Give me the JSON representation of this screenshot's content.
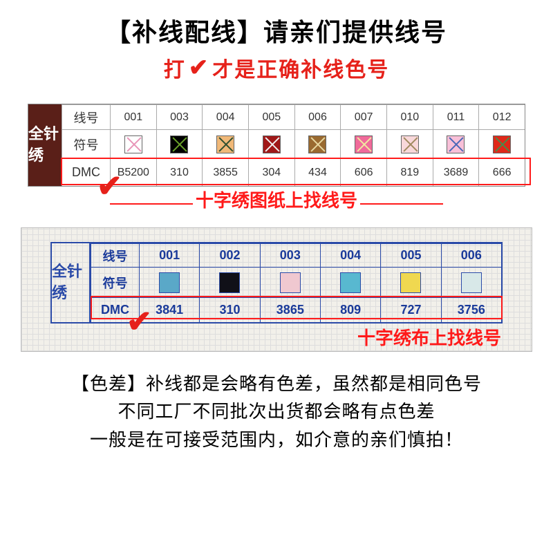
{
  "header": {
    "title": "【补线配线】请亲们提供线号",
    "subtitle_pre": "打",
    "subtitle_post": "才是正确补线色号"
  },
  "table1": {
    "side_label": "全针绣",
    "row_labels": [
      "线号",
      "符号",
      "DMC"
    ],
    "thread_numbers": [
      "001",
      "003",
      "004",
      "005",
      "006",
      "007",
      "010",
      "011",
      "012"
    ],
    "symbol_colors": [
      {
        "bg": "#ffffff",
        "x": "#e895b8"
      },
      {
        "bg": "#000000",
        "x": "#6aa22a"
      },
      {
        "bg": "#f0b878",
        "x": "#2f4f2f"
      },
      {
        "bg": "#a01818",
        "x": "#f0f0f0"
      },
      {
        "bg": "#9a6a30",
        "x": "#e8d8a0"
      },
      {
        "bg": "#f06a9a",
        "x": "#f0e8a0"
      },
      {
        "bg": "#f8d8da",
        "x": "#a08a60"
      },
      {
        "bg": "#f8c0d8",
        "x": "#4a68b8"
      },
      {
        "bg": "#e02818",
        "x": "#4a8a4a"
      }
    ],
    "dmc": [
      "B5200",
      "310",
      "3855",
      "304",
      "434",
      "606",
      "819",
      "3689",
      "666"
    ],
    "caption": "十字绣图纸上找线号"
  },
  "table2": {
    "side_label": "全针绣",
    "row_labels": [
      "线号",
      "符号",
      "DMC"
    ],
    "thread_numbers": [
      "001",
      "002",
      "003",
      "004",
      "005",
      "006"
    ],
    "symbol_colors": [
      "#5aa8c8",
      "#101018",
      "#f0c8d0",
      "#58b8d0",
      "#f0d850",
      "#d8e8e8"
    ],
    "dmc": [
      "3841",
      "310",
      "3865",
      "809",
      "727",
      "3756"
    ],
    "caption": "十字绣布上找线号"
  },
  "footer": {
    "line1": "【色差】补线都是会略有色差，虽然都是相同色号",
    "line2": "不同工厂不同批次出货都会略有点色差",
    "line3": "一般是在可接受范围内，如介意的亲们慎拍！"
  },
  "colors": {
    "accent_red": "#e6211a",
    "box_red": "#ff1a1a",
    "ink_blue": "#2a4aa8",
    "side_brown": "#5a1f18"
  }
}
